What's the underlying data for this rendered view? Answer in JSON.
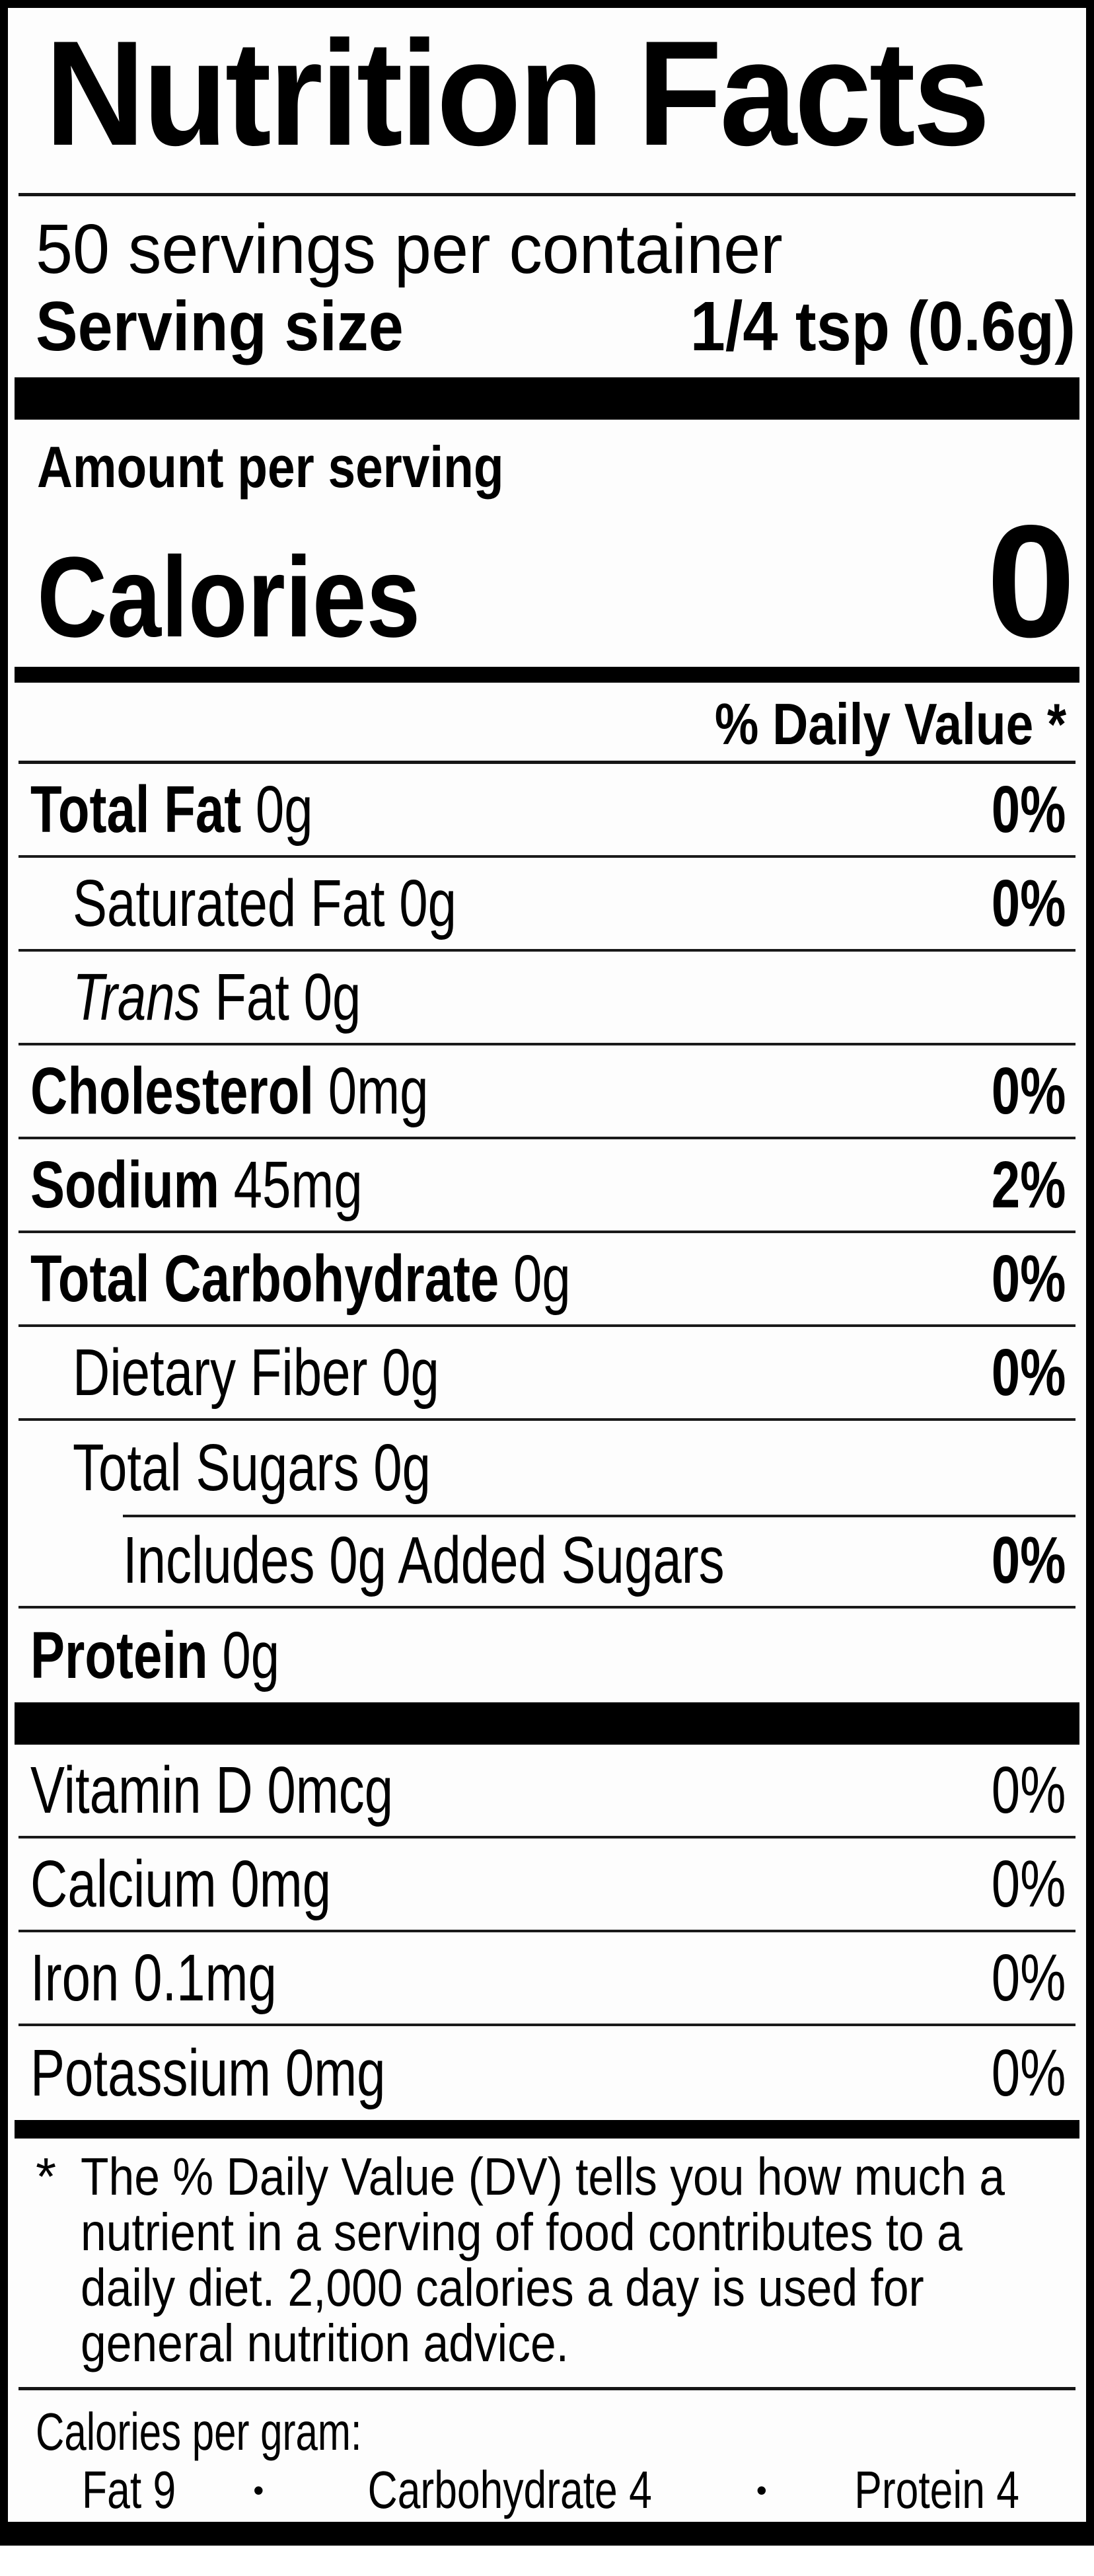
{
  "label": {
    "title": "Nutrition Facts",
    "servings_per_container": "50 servings per container",
    "serving_size": {
      "label": "Serving size",
      "value": "1/4 tsp (0.6g)"
    },
    "amount_per_serving": "Amount per serving",
    "calories": {
      "label": "Calories",
      "value": "0"
    },
    "daily_value_header": "% Daily Value *",
    "nutrient_rows": [
      {
        "label": "Total Fat",
        "amount": "0g",
        "dv": "0%",
        "bold_label": true,
        "italic_label": false,
        "indent": 0,
        "dv_bold": true,
        "rule_below": true,
        "rule_above_indent": false
      },
      {
        "label": "Saturated Fat",
        "amount": "0g",
        "dv": "0%",
        "bold_label": false,
        "italic_label": false,
        "indent": 1,
        "dv_bold": true,
        "rule_below": true,
        "rule_above_indent": false
      },
      {
        "label": "Trans",
        "amount": "Fat 0g",
        "dv": "",
        "bold_label": false,
        "italic_label": true,
        "indent": 1,
        "dv_bold": false,
        "rule_below": true,
        "rule_above_indent": false
      },
      {
        "label": "Cholesterol",
        "amount": "0mg",
        "dv": "0%",
        "bold_label": true,
        "italic_label": false,
        "indent": 0,
        "dv_bold": true,
        "rule_below": true,
        "rule_above_indent": false
      },
      {
        "label": "Sodium",
        "amount": "45mg",
        "dv": "2%",
        "bold_label": true,
        "italic_label": false,
        "indent": 0,
        "dv_bold": true,
        "rule_below": true,
        "rule_above_indent": false
      },
      {
        "label": "Total Carbohydrate",
        "amount": "0g",
        "dv": "0%",
        "bold_label": true,
        "italic_label": false,
        "indent": 0,
        "dv_bold": true,
        "rule_below": true,
        "rule_above_indent": false
      },
      {
        "label": "Dietary Fiber",
        "amount": "0g",
        "dv": "0%",
        "bold_label": false,
        "italic_label": false,
        "indent": 1,
        "dv_bold": true,
        "rule_below": true,
        "rule_above_indent": false
      },
      {
        "label": "Total Sugars",
        "amount": "0g",
        "dv": "",
        "bold_label": false,
        "italic_label": false,
        "indent": 1,
        "dv_bold": false,
        "rule_below": false,
        "rule_above_indent": false
      },
      {
        "label": "Includes 0g Added Sugars",
        "amount": "",
        "dv": "0%",
        "bold_label": false,
        "italic_label": false,
        "indent": 2,
        "dv_bold": true,
        "rule_below": true,
        "rule_above_indent": true
      },
      {
        "label": "Protein",
        "amount": "0g",
        "dv": "",
        "bold_label": true,
        "italic_label": false,
        "indent": 0,
        "dv_bold": false,
        "rule_below": false,
        "rule_above_indent": false
      }
    ],
    "vitamin_rows": [
      {
        "label": "Vitamin D",
        "amount": "0mcg",
        "dv": "0%",
        "bold_label": false,
        "italic_label": false,
        "indent": 0,
        "dv_bold": false,
        "rule_below": true,
        "rule_above_indent": false
      },
      {
        "label": "Calcium",
        "amount": "0mg",
        "dv": "0%",
        "bold_label": false,
        "italic_label": false,
        "indent": 0,
        "dv_bold": false,
        "rule_below": true,
        "rule_above_indent": false
      },
      {
        "label": "Iron",
        "amount": "0.1mg",
        "dv": "0%",
        "bold_label": false,
        "italic_label": false,
        "indent": 0,
        "dv_bold": false,
        "rule_below": true,
        "rule_above_indent": false
      },
      {
        "label": "Potassium",
        "amount": "0mg",
        "dv": "0%",
        "bold_label": false,
        "italic_label": false,
        "indent": 0,
        "dv_bold": false,
        "rule_below": false,
        "rule_above_indent": false
      }
    ],
    "footnote": {
      "marker": "*",
      "lines": [
        "The % Daily Value (DV) tells you how much a",
        "nutrient in a serving of food contributes to a",
        "daily diet. 2,000 calories a day is used for",
        "general nutrition advice."
      ]
    },
    "calories_per_gram": {
      "heading": "Calories per gram:",
      "bullet": "•",
      "items": [
        {
          "name": "Fat",
          "value": "9"
        },
        {
          "name": "Carbohydrate",
          "value": "4"
        },
        {
          "name": "Protein",
          "value": "4"
        }
      ]
    }
  }
}
